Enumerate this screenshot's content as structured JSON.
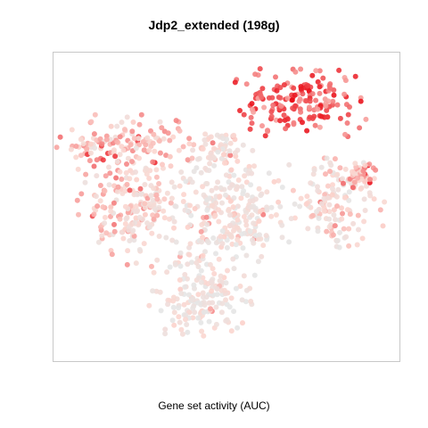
{
  "chart_data": {
    "type": "scatter",
    "title": "Jdp2_extended (198g)",
    "xlabel": "Gene set activity (AUC)",
    "ylabel": "",
    "axes_visible": false,
    "grid": false,
    "legend": "none",
    "xlim": [
      0,
      1
    ],
    "ylim": [
      0,
      1
    ],
    "color_low": "#e5e5e5",
    "color_mid": "#fcd5ce",
    "color_high": "#e8000b",
    "frame_color": "#c8c8c8",
    "clusters": [
      {
        "name": "top-hotspot",
        "cx": 0.71,
        "cy": 0.86,
        "rx": 0.18,
        "ry": 0.1,
        "n": 170,
        "level": 0.72
      },
      {
        "name": "upper-left-band",
        "cx": 0.2,
        "cy": 0.72,
        "rx": 0.17,
        "ry": 0.08,
        "n": 140,
        "level": 0.38
      },
      {
        "name": "left-mass",
        "cx": 0.21,
        "cy": 0.5,
        "rx": 0.14,
        "ry": 0.16,
        "n": 200,
        "level": 0.3
      },
      {
        "name": "center-mass",
        "cx": 0.51,
        "cy": 0.48,
        "rx": 0.16,
        "ry": 0.17,
        "n": 240,
        "level": 0.16
      },
      {
        "name": "right-lobe",
        "cx": 0.83,
        "cy": 0.52,
        "rx": 0.12,
        "ry": 0.13,
        "n": 140,
        "level": 0.24
      },
      {
        "name": "far-right-arm",
        "cx": 0.91,
        "cy": 0.61,
        "rx": 0.05,
        "ry": 0.04,
        "n": 40,
        "level": 0.48
      },
      {
        "name": "bottom-mass",
        "cx": 0.42,
        "cy": 0.19,
        "rx": 0.13,
        "ry": 0.12,
        "n": 170,
        "level": 0.14
      },
      {
        "name": "upper-center-patch",
        "cx": 0.47,
        "cy": 0.7,
        "rx": 0.07,
        "ry": 0.06,
        "n": 60,
        "level": 0.2
      }
    ]
  }
}
